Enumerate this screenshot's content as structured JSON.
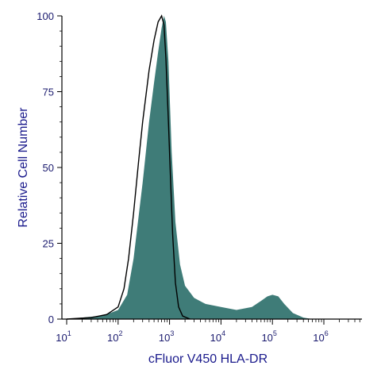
{
  "chart_data": {
    "type": "area",
    "xlabel": "cFluor V450 HLA-DR",
    "ylabel": "Relative Cell Number",
    "x_scale": "log",
    "xlim": [
      10,
      1000000
    ],
    "ylim": [
      0,
      100
    ],
    "x_ticks": [
      {
        "base": "10",
        "exp": "1",
        "value": 10
      },
      {
        "base": "10",
        "exp": "2",
        "value": 100
      },
      {
        "base": "10",
        "exp": "3",
        "value": 1000
      },
      {
        "base": "10",
        "exp": "4",
        "value": 10000
      },
      {
        "base": "10",
        "exp": "5",
        "value": 100000
      },
      {
        "base": "10",
        "exp": "6",
        "value": 1000000
      }
    ],
    "y_ticks": [
      "0",
      "25",
      "50",
      "75",
      "100"
    ],
    "y_tick_values": [
      0,
      25,
      50,
      75,
      100
    ],
    "colors": {
      "filled_histogram": "#3f7c78",
      "outline_histogram": "#000000",
      "axis": "#000000",
      "labels": "#1a1a8c"
    },
    "series": [
      {
        "style": "filled",
        "points": [
          [
            10,
            0
          ],
          [
            20,
            0.5
          ],
          [
            40,
            1
          ],
          [
            70,
            2
          ],
          [
            100,
            3
          ],
          [
            150,
            8
          ],
          [
            200,
            20
          ],
          [
            300,
            45
          ],
          [
            400,
            65
          ],
          [
            500,
            78
          ],
          [
            600,
            88
          ],
          [
            700,
            96
          ],
          [
            780,
            100
          ],
          [
            850,
            98
          ],
          [
            950,
            85
          ],
          [
            1100,
            55
          ],
          [
            1300,
            32
          ],
          [
            1600,
            18
          ],
          [
            2000,
            11
          ],
          [
            3000,
            7
          ],
          [
            5000,
            5
          ],
          [
            10000,
            4
          ],
          [
            20000,
            3
          ],
          [
            40000,
            4
          ],
          [
            60000,
            6
          ],
          [
            80000,
            7.5
          ],
          [
            100000,
            8
          ],
          [
            130000,
            7.5
          ],
          [
            170000,
            5
          ],
          [
            250000,
            2
          ],
          [
            400000,
            0.5
          ],
          [
            600000,
            0
          ]
        ]
      },
      {
        "style": "outline",
        "points": [
          [
            10,
            0
          ],
          [
            30,
            0.5
          ],
          [
            60,
            1.5
          ],
          [
            100,
            4
          ],
          [
            130,
            10
          ],
          [
            160,
            20
          ],
          [
            200,
            35
          ],
          [
            250,
            52
          ],
          [
            300,
            65
          ],
          [
            400,
            82
          ],
          [
            500,
            92
          ],
          [
            600,
            98
          ],
          [
            700,
            100
          ],
          [
            780,
            97
          ],
          [
            850,
            86
          ],
          [
            950,
            65
          ],
          [
            1050,
            45
          ],
          [
            1150,
            28
          ],
          [
            1300,
            12
          ],
          [
            1500,
            4
          ],
          [
            1800,
            1
          ],
          [
            2500,
            0
          ]
        ]
      }
    ]
  }
}
